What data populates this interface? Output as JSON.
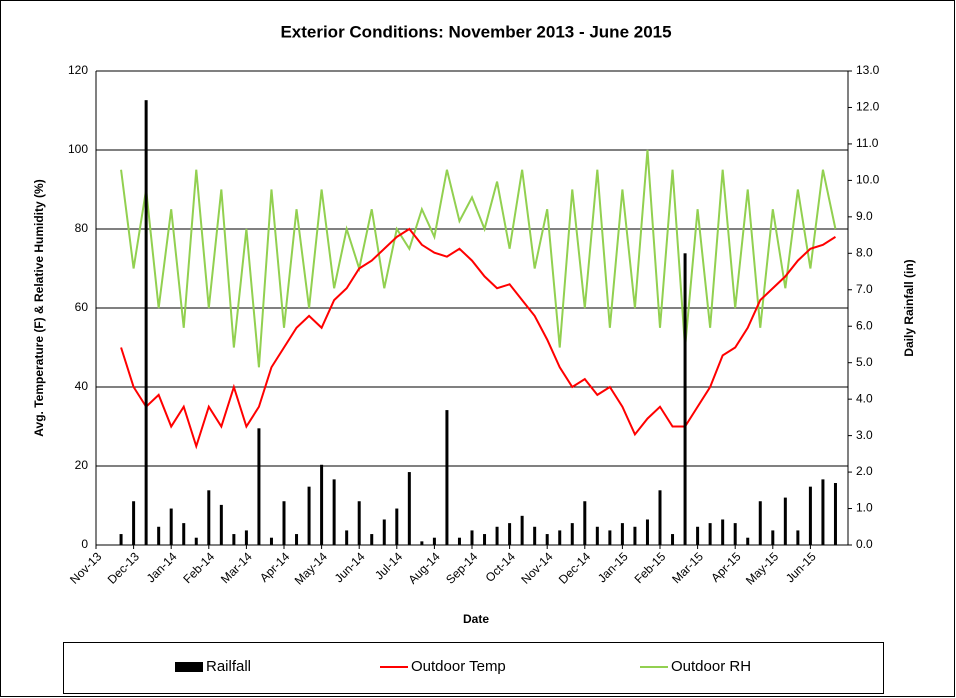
{
  "chart_data": {
    "type": "line",
    "title": "Exterior Conditions: November 2013 - June 2015",
    "x_label": "Date",
    "y_label": "Avg. Temperature (F) & Relative Humidity (%)",
    "y2_label": "Daily Rainfall (in)",
    "categories": [
      "Nov-13",
      null,
      null,
      "Dec-13",
      null,
      null,
      "Jan-14",
      null,
      null,
      "Feb-14",
      null,
      null,
      "Mar-14",
      null,
      null,
      "Apr-14",
      null,
      null,
      "May-14",
      null,
      null,
      "Jun-14",
      null,
      null,
      "Jul-14",
      null,
      null,
      "Aug-14",
      null,
      null,
      "Sep-14",
      null,
      null,
      "Oct-14",
      null,
      null,
      "Nov-14",
      null,
      null,
      "Dec-14",
      null,
      null,
      "Jan-15",
      null,
      null,
      "Feb-15",
      null,
      null,
      "Mar-15",
      null,
      null,
      "Apr-15",
      null,
      null,
      "May-15",
      null,
      null,
      "Jun-15",
      null,
      null
    ],
    "series": [
      {
        "name": "Railfall",
        "color": "#000000",
        "axis": "y2",
        "kind": "bar",
        "values": [
          null,
          null,
          0.3,
          1.2,
          12.2,
          0.5,
          1.0,
          0.6,
          0.2,
          1.5,
          1.1,
          0.3,
          0.4,
          3.2,
          0.2,
          1.2,
          0.3,
          1.6,
          2.2,
          1.8,
          0.4,
          1.2,
          0.3,
          0.7,
          1.0,
          2.0,
          0.1,
          0.2,
          3.7,
          0.2,
          0.4,
          0.3,
          0.5,
          0.6,
          0.8,
          0.5,
          0.3,
          0.4,
          0.6,
          1.2,
          0.5,
          0.4,
          0.6,
          0.5,
          0.7,
          1.5,
          0.3,
          8.0,
          0.5,
          0.6,
          0.7,
          0.6,
          0.2,
          1.2,
          0.4,
          1.3,
          0.4,
          1.6,
          1.8,
          1.7
        ]
      },
      {
        "name": "Outdoor Temp",
        "color": "#ff0000",
        "kind": "line",
        "values": [
          null,
          null,
          50,
          40,
          35,
          38,
          30,
          35,
          25,
          35,
          30,
          40,
          30,
          35,
          45,
          50,
          55,
          58,
          55,
          62,
          65,
          70,
          72,
          75,
          78,
          80,
          76,
          74,
          73,
          75,
          72,
          68,
          65,
          66,
          62,
          58,
          52,
          45,
          40,
          42,
          38,
          40,
          35,
          28,
          32,
          35,
          30,
          30,
          35,
          40,
          48,
          50,
          55,
          62,
          65,
          68,
          72,
          75,
          76,
          78
        ]
      },
      {
        "name": "Outdoor RH",
        "color": "#92d050",
        "kind": "line",
        "values": [
          null,
          null,
          95,
          70,
          90,
          60,
          85,
          55,
          95,
          60,
          90,
          50,
          80,
          45,
          90,
          55,
          85,
          60,
          90,
          65,
          80,
          70,
          85,
          65,
          80,
          75,
          85,
          78,
          95,
          82,
          88,
          80,
          92,
          75,
          95,
          70,
          85,
          50,
          90,
          60,
          95,
          55,
          90,
          60,
          100,
          55,
          95,
          50,
          85,
          55,
          95,
          60,
          90,
          55,
          85,
          65,
          90,
          70,
          95,
          80
        ]
      }
    ],
    "ylim": [
      0,
      120
    ],
    "yticks": [
      0,
      20,
      40,
      60,
      80,
      100,
      120
    ],
    "y2lim": [
      0,
      13
    ],
    "y2ticks": [
      {
        "value": 0,
        "label": "0.0"
      },
      {
        "value": 1,
        "label": "1.0"
      },
      {
        "value": 2,
        "label": "2.0"
      },
      {
        "value": 3,
        "label": "3.0"
      },
      {
        "value": 4,
        "label": "4.0"
      },
      {
        "value": 5,
        "label": "5.0"
      },
      {
        "value": 6,
        "label": "6.0"
      },
      {
        "value": 7,
        "label": "7.0"
      },
      {
        "value": 8,
        "label": "8.0"
      },
      {
        "value": 9,
        "label": "9.0"
      },
      {
        "value": 10,
        "label": "10.0"
      },
      {
        "value": 11,
        "label": "11.0"
      },
      {
        "value": 12,
        "label": "12.0"
      },
      {
        "value": 13,
        "label": "13.0"
      }
    ],
    "grid": true,
    "legend": "bottom"
  }
}
